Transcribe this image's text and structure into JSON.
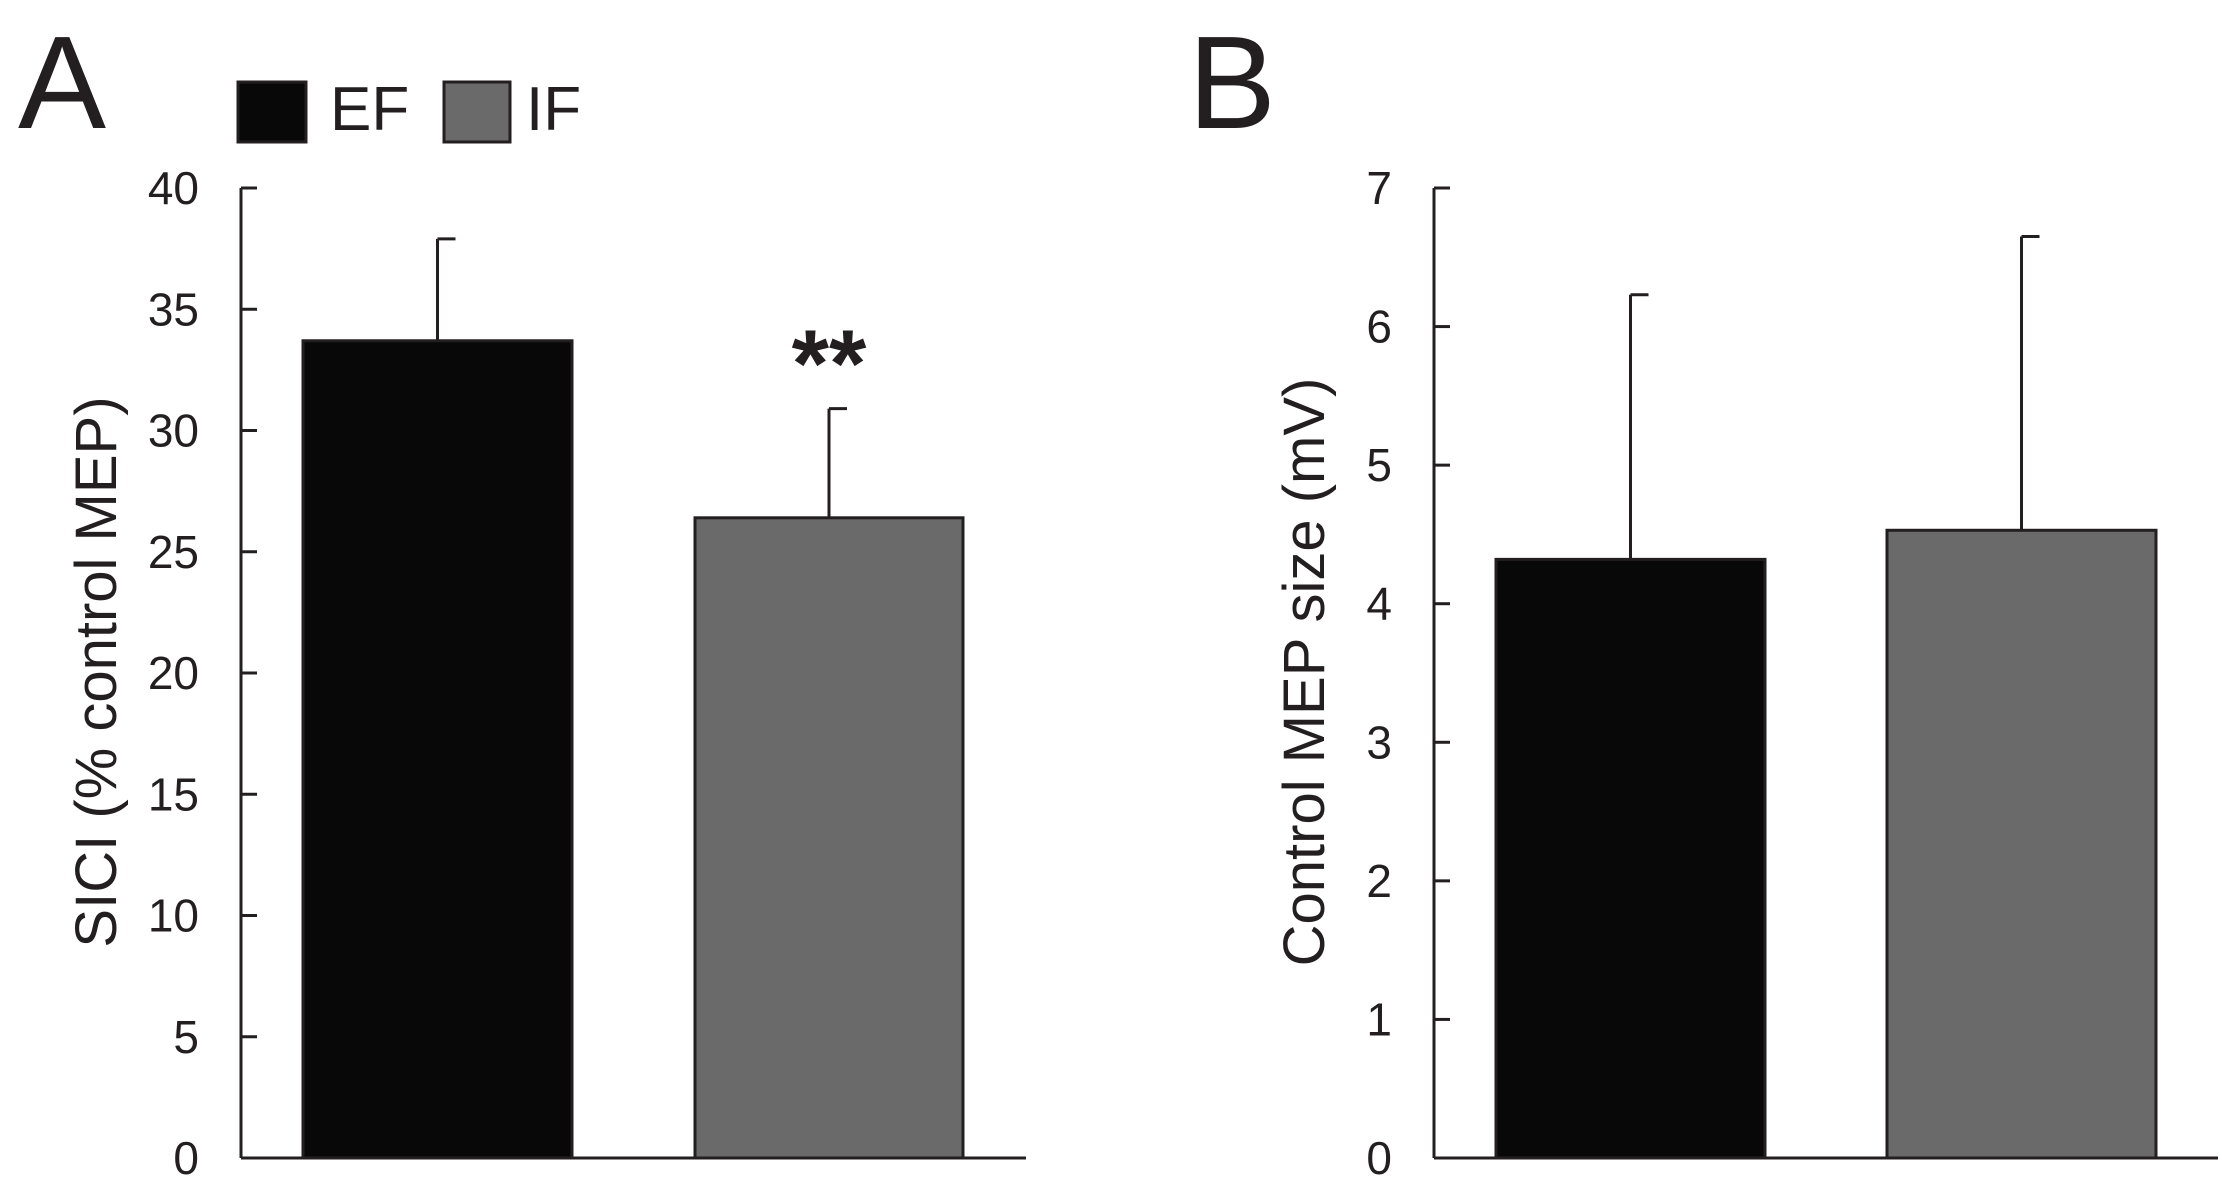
{
  "chart_data": [
    {
      "type": "bar",
      "panel": "A",
      "categories": [
        "EF",
        "IF"
      ],
      "values": [
        33.7,
        26.4
      ],
      "errors": [
        4.2,
        4.5
      ],
      "colors": [
        "#080809",
        "#6a6a6a"
      ],
      "ylabel": "SICI (% control MEP)",
      "xlabel": "",
      "ylim": [
        0,
        40
      ],
      "yticks": [
        0,
        5,
        10,
        15,
        20,
        25,
        30,
        35,
        40
      ],
      "annotations": [
        {
          "category": "IF",
          "text": "**"
        }
      ],
      "legend": {
        "placement": "top",
        "entries": [
          {
            "label": "EF",
            "color": "#080809"
          },
          {
            "label": "IF",
            "color": "#6a6a6a"
          }
        ]
      }
    },
    {
      "type": "bar",
      "panel": "B",
      "categories": [
        "EF",
        "IF"
      ],
      "values": [
        4.32,
        4.53
      ],
      "errors": [
        1.91,
        2.12
      ],
      "colors": [
        "#080809",
        "#6a6a6a"
      ],
      "ylabel": "Control MEP size (mV)",
      "xlabel": "",
      "ylim": [
        0,
        7
      ],
      "yticks": [
        0,
        1,
        2,
        3,
        4,
        5,
        6,
        7
      ],
      "annotations": []
    }
  ]
}
